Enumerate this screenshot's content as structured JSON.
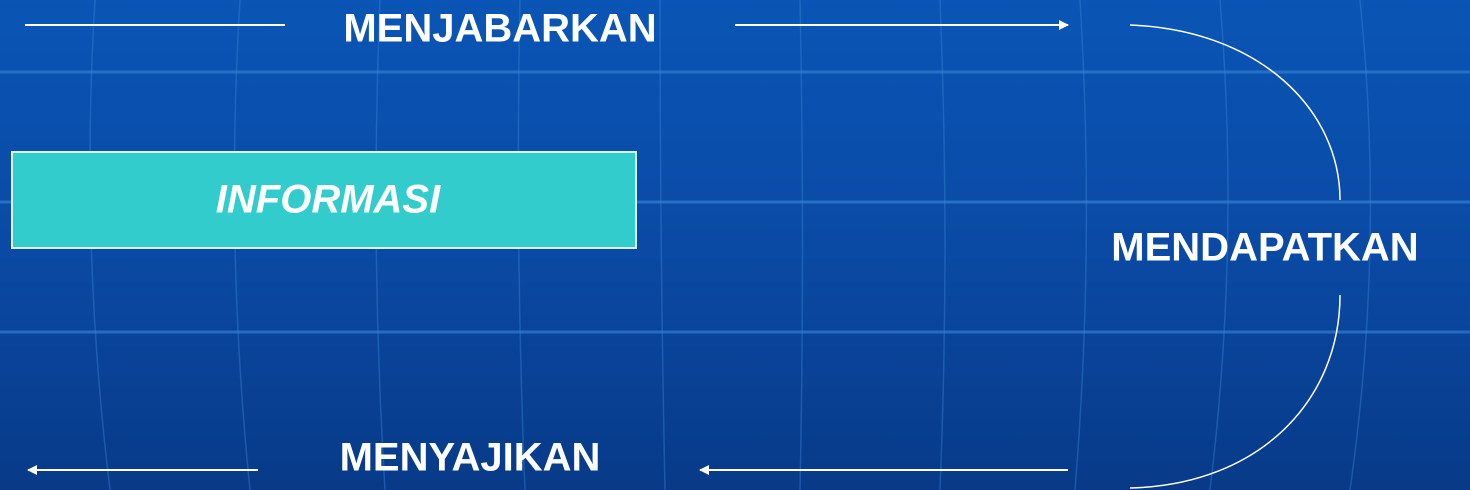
{
  "labels": {
    "top": "MENJABARKAN",
    "box": "INFORMASI",
    "right": "MENDAPATKAN",
    "bottom": "MENYAJIKAN"
  }
}
